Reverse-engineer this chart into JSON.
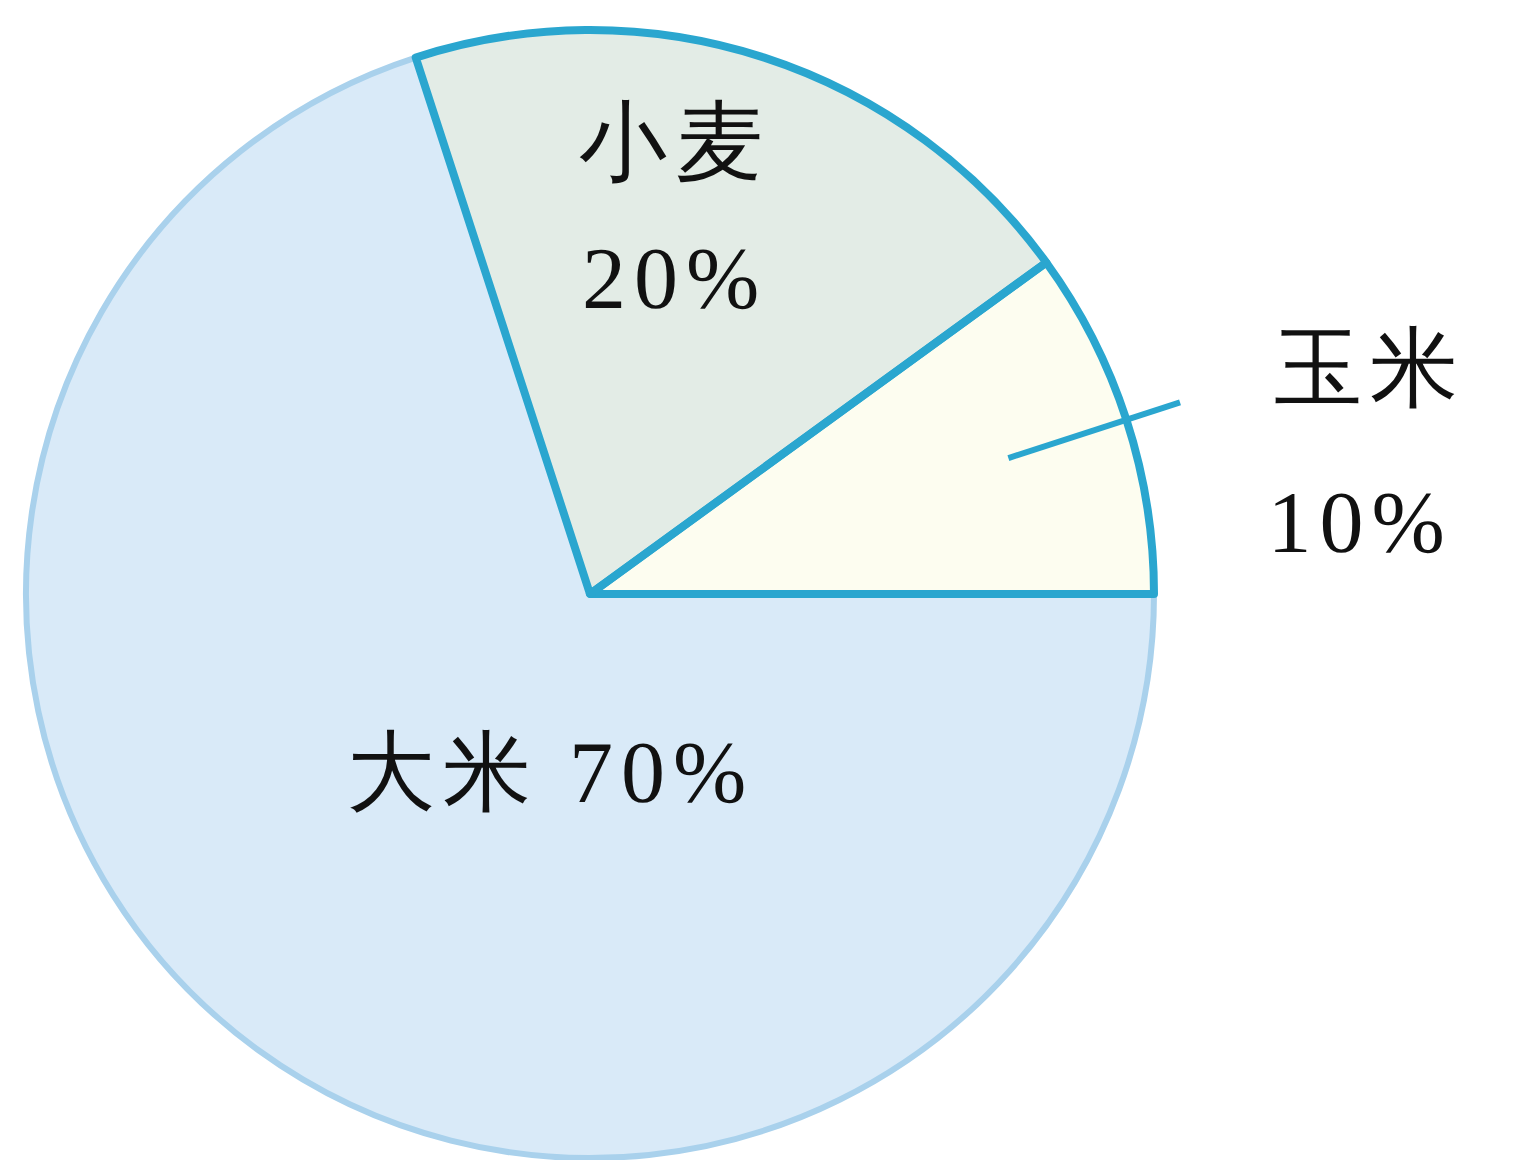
{
  "chart_data": {
    "type": "pie",
    "categories": [
      "玉米",
      "小麦",
      "大米"
    ],
    "values": [
      10,
      20,
      70
    ],
    "value_labels": [
      "10%",
      "20%",
      "70%"
    ],
    "colors": [
      "#fdfdf0",
      "#e3ece6",
      "#d9eaf8"
    ]
  }
}
